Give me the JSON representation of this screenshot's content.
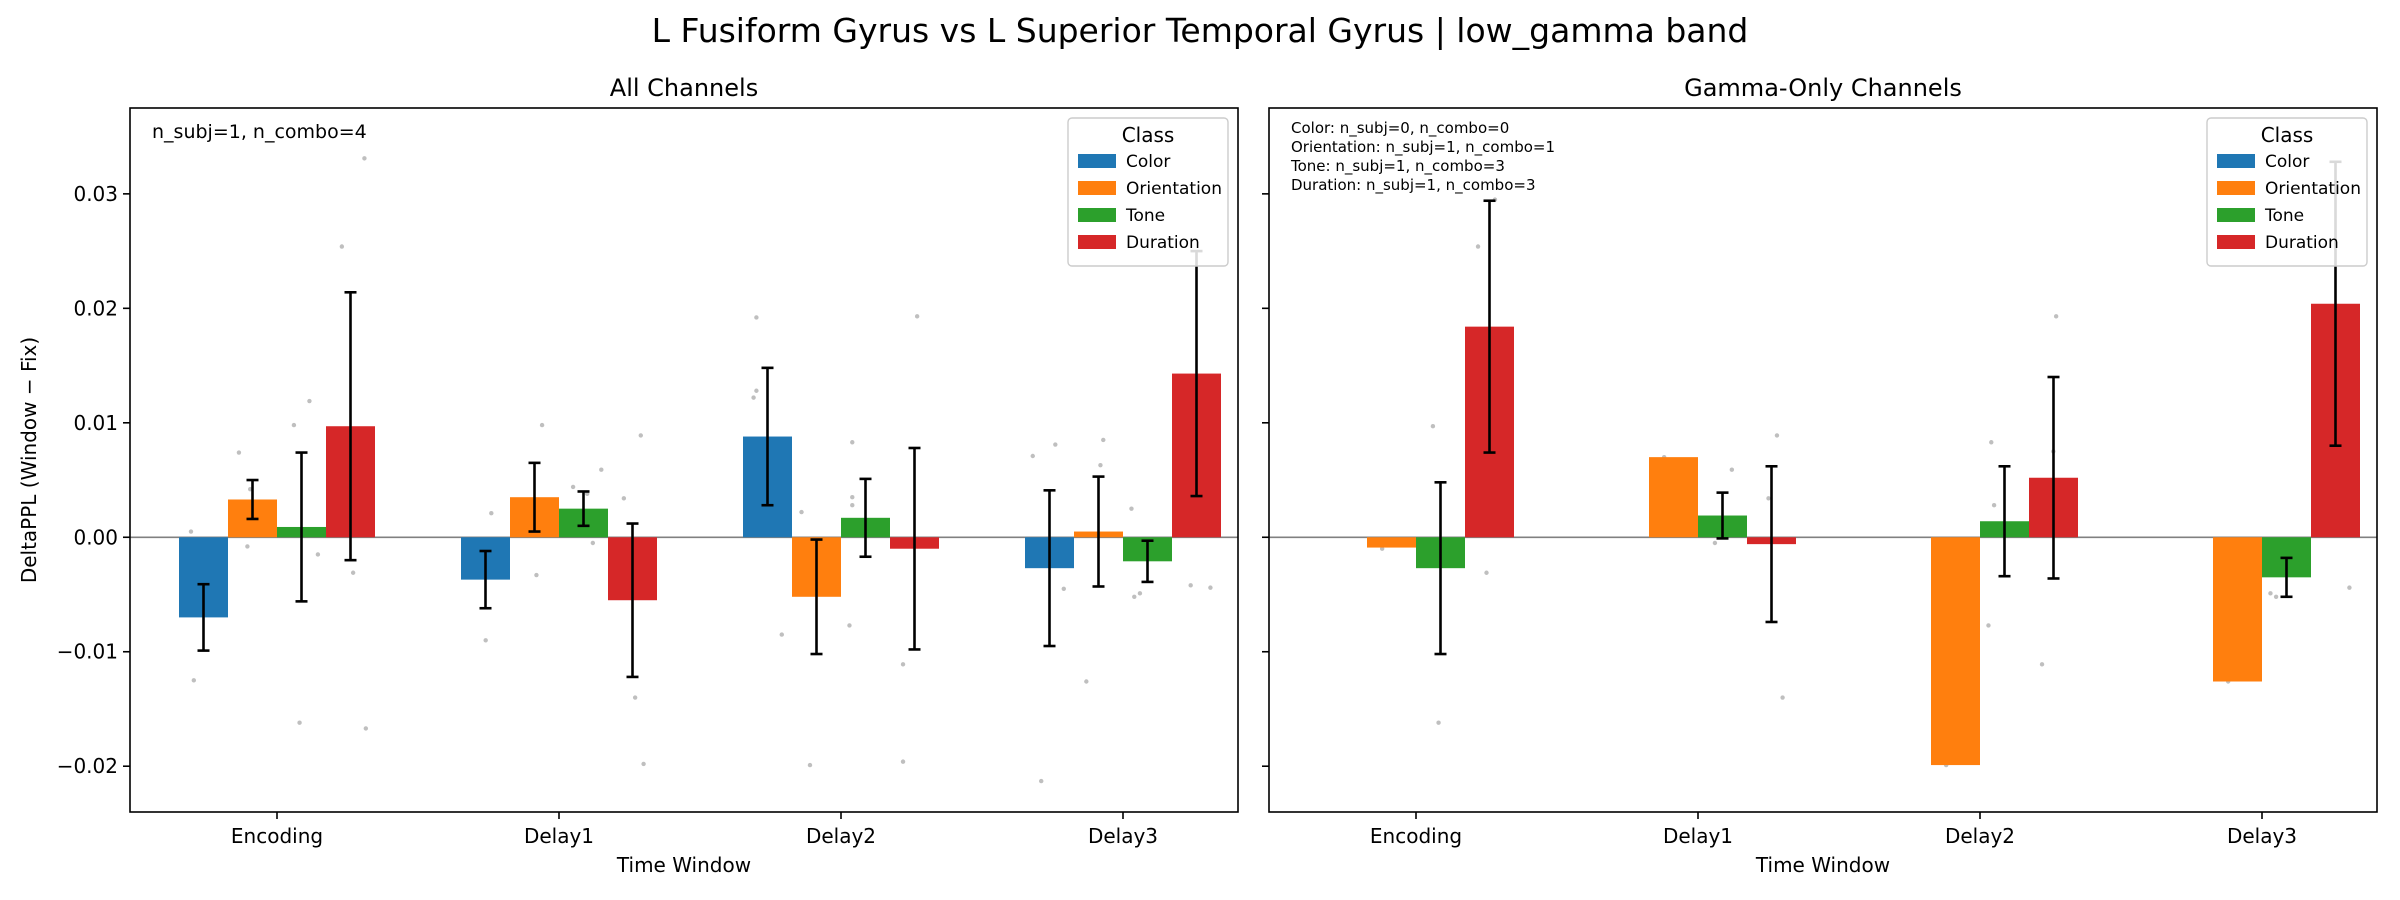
{
  "suptitle": "L Fusiform Gyrus vs L Superior Temporal Gyrus  |  low_gamma band",
  "colors": {
    "Color": "#1f77b4",
    "Orientation": "#ff7f0e",
    "Tone": "#2ca02c",
    "Duration": "#d62728",
    "points": "#bfbfbf",
    "zero_line": "#808080"
  },
  "legend_title": "Class",
  "chart_data": [
    {
      "type": "bar",
      "title": "All Channels",
      "xlabel": "Time Window",
      "ylabel": "DeltaPPL (Window − Fix)",
      "categories": [
        "Encoding",
        "Delay1",
        "Delay2",
        "Delay3"
      ],
      "ylim": [
        -0.024,
        0.0375
      ],
      "yticks": [
        -0.02,
        -0.01,
        0.0,
        0.01,
        0.02,
        0.03
      ],
      "ytick_labels": [
        "−0.02",
        "−0.01",
        "0.00",
        "0.01",
        "0.02",
        "0.03"
      ],
      "legend_position": "top-right",
      "annotation": [
        "n_subj=1, n_combo=4"
      ],
      "series": [
        {
          "name": "Color",
          "values": [
            -0.007,
            -0.0037,
            0.0088,
            -0.0027
          ],
          "err": [
            0.0029,
            0.0025,
            0.006,
            0.0068
          ]
        },
        {
          "name": "Orientation",
          "values": [
            0.0033,
            0.0035,
            -0.0052,
            0.0005
          ],
          "err": [
            0.0017,
            0.003,
            0.005,
            0.0048
          ]
        },
        {
          "name": "Tone",
          "values": [
            0.0009,
            0.0025,
            0.0017,
            -0.0021
          ],
          "err": [
            0.0065,
            0.0015,
            0.0034,
            0.0018
          ]
        },
        {
          "name": "Duration",
          "values": [
            0.0097,
            -0.0055,
            -0.001,
            0.0143
          ],
          "err": [
            0.0117,
            0.0067,
            0.0088,
            0.0107
          ]
        }
      ],
      "points": [
        {
          "x": -0.295,
          "y": -0.0125
        },
        {
          "x": -0.305,
          "y": 0.0005
        },
        {
          "x": -0.135,
          "y": 0.0074
        },
        {
          "x": -0.095,
          "y": 0.0042
        },
        {
          "x": -0.105,
          "y": -0.0008
        },
        {
          "x": 0.06,
          "y": 0.0098
        },
        {
          "x": 0.08,
          "y": -0.0162
        },
        {
          "x": 0.115,
          "y": 0.0119
        },
        {
          "x": 0.145,
          "y": -0.0015
        },
        {
          "x": 0.23,
          "y": 0.0254
        },
        {
          "x": 0.27,
          "y": -0.0031
        },
        {
          "x": 0.31,
          "y": 0.0331
        },
        {
          "x": 0.315,
          "y": -0.0167
        },
        {
          "x": 0.74,
          "y": -0.0023
        },
        {
          "x": 0.76,
          "y": 0.0021
        },
        {
          "x": 0.74,
          "y": -0.009
        },
        {
          "x": 0.92,
          "y": -0.0033
        },
        {
          "x": 0.94,
          "y": 0.0098
        },
        {
          "x": 1.05,
          "y": 0.0044
        },
        {
          "x": 1.1,
          "y": 0.0038
        },
        {
          "x": 1.12,
          "y": -0.0005
        },
        {
          "x": 1.15,
          "y": 0.0059
        },
        {
          "x": 1.23,
          "y": 0.0034
        },
        {
          "x": 1.27,
          "y": -0.014
        },
        {
          "x": 1.3,
          "y": -0.0198
        },
        {
          "x": 1.29,
          "y": 0.0089
        },
        {
          "x": 1.7,
          "y": 0.0192
        },
        {
          "x": 1.7,
          "y": 0.0128
        },
        {
          "x": 1.69,
          "y": 0.0122
        },
        {
          "x": 1.79,
          "y": -0.0085
        },
        {
          "x": 1.86,
          "y": 0.0022
        },
        {
          "x": 1.89,
          "y": -0.0199
        },
        {
          "x": 2.04,
          "y": 0.0083
        },
        {
          "x": 2.04,
          "y": 0.0035
        },
        {
          "x": 2.03,
          "y": -0.0077
        },
        {
          "x": 2.04,
          "y": 0.0028
        },
        {
          "x": 2.22,
          "y": -0.0111
        },
        {
          "x": 2.22,
          "y": -0.0196
        },
        {
          "x": 2.27,
          "y": 0.0193
        },
        {
          "x": 2.68,
          "y": 0.0071
        },
        {
          "x": 2.71,
          "y": -0.0213
        },
        {
          "x": 2.76,
          "y": 0.0081
        },
        {
          "x": 2.79,
          "y": -0.0045
        },
        {
          "x": 2.87,
          "y": -0.0126
        },
        {
          "x": 2.93,
          "y": 0.0085
        },
        {
          "x": 2.92,
          "y": 0.0063
        },
        {
          "x": 3.03,
          "y": 0.0025
        },
        {
          "x": 3.04,
          "y": -0.0052
        },
        {
          "x": 3.06,
          "y": -0.0049
        },
        {
          "x": 3.24,
          "y": -0.0042
        },
        {
          "x": 3.31,
          "y": -0.0044
        }
      ]
    },
    {
      "type": "bar",
      "title": "Gamma-Only Channels",
      "xlabel": "Time Window",
      "ylabel": "",
      "categories": [
        "Encoding",
        "Delay1",
        "Delay2",
        "Delay3"
      ],
      "ylim": [
        -0.024,
        0.0375
      ],
      "yticks": [
        -0.02,
        -0.01,
        0.0,
        0.01,
        0.02,
        0.03
      ],
      "ytick_labels": [
        "",
        "",
        "",
        "",
        "",
        ""
      ],
      "legend_position": "top-right",
      "annotation": [
        "Color: n_subj=0, n_combo=0",
        "Orientation: n_subj=1, n_combo=1",
        "Tone: n_subj=1, n_combo=3",
        "Duration: n_subj=1, n_combo=3"
      ],
      "series": [
        {
          "name": "Color",
          "values": [
            null,
            null,
            null,
            null
          ],
          "err": [
            null,
            null,
            null,
            null
          ]
        },
        {
          "name": "Orientation",
          "values": [
            -0.0009,
            0.007,
            -0.0199,
            -0.0126
          ],
          "err": [
            null,
            null,
            null,
            null
          ]
        },
        {
          "name": "Tone",
          "values": [
            -0.0027,
            0.0019,
            0.0014,
            -0.0035
          ],
          "err": [
            0.0075,
            0.002,
            0.0048,
            0.0017
          ]
        },
        {
          "name": "Duration",
          "values": [
            0.0184,
            -0.0006,
            0.0052,
            0.0204
          ],
          "err": [
            0.011,
            0.0068,
            0.0088,
            0.0124
          ]
        }
      ],
      "points": [
        {
          "x": -0.12,
          "y": -0.001
        },
        {
          "x": 0.06,
          "y": 0.0097
        },
        {
          "x": 0.08,
          "y": -0.0162
        },
        {
          "x": 0.1,
          "y": -0.0003
        },
        {
          "x": 0.22,
          "y": 0.0254
        },
        {
          "x": 0.25,
          "y": -0.0031
        },
        {
          "x": 0.28,
          "y": 0.0295
        },
        {
          "x": 0.88,
          "y": 0.007
        },
        {
          "x": 1.06,
          "y": -0.0005
        },
        {
          "x": 1.12,
          "y": 0.0059
        },
        {
          "x": 1.1,
          "y": 0.0003
        },
        {
          "x": 1.25,
          "y": 0.0034
        },
        {
          "x": 1.3,
          "y": -0.014
        },
        {
          "x": 1.28,
          "y": 0.0089
        },
        {
          "x": 1.88,
          "y": -0.0199
        },
        {
          "x": 2.04,
          "y": 0.0083
        },
        {
          "x": 2.03,
          "y": -0.0077
        },
        {
          "x": 2.05,
          "y": 0.0028
        },
        {
          "x": 2.22,
          "y": -0.0111
        },
        {
          "x": 2.27,
          "y": 0.0193
        },
        {
          "x": 2.26,
          "y": 0.0075
        },
        {
          "x": 2.88,
          "y": -0.0126
        },
        {
          "x": 3.03,
          "y": -0.0049
        },
        {
          "x": 3.05,
          "y": -0.0052
        },
        {
          "x": 3.22,
          "y": 0.0255
        },
        {
          "x": 3.31,
          "y": -0.0044
        }
      ]
    }
  ]
}
